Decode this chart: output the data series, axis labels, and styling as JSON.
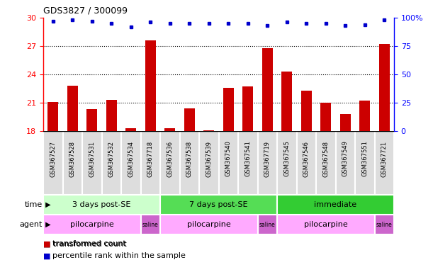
{
  "title": "GDS3827 / 300099",
  "samples": [
    "GSM367527",
    "GSM367528",
    "GSM367531",
    "GSM367532",
    "GSM367534",
    "GSM367718",
    "GSM367536",
    "GSM367538",
    "GSM367539",
    "GSM367540",
    "GSM367541",
    "GSM367719",
    "GSM367545",
    "GSM367546",
    "GSM367548",
    "GSM367549",
    "GSM367551",
    "GSM367721"
  ],
  "red_values": [
    21.1,
    22.8,
    20.3,
    21.3,
    18.3,
    27.6,
    18.3,
    20.4,
    18.1,
    22.6,
    22.7,
    26.8,
    24.3,
    22.3,
    21.0,
    19.8,
    21.2,
    27.2
  ],
  "blue_values": [
    97,
    98,
    97,
    95,
    92,
    96,
    95,
    95,
    95,
    95,
    95,
    93,
    96,
    95,
    95,
    93,
    94,
    98
  ],
  "ylim_left": [
    18,
    30
  ],
  "ylim_right": [
    0,
    100
  ],
  "yticks_left": [
    18,
    21,
    24,
    27,
    30
  ],
  "yticks_right": [
    0,
    25,
    50,
    75,
    100
  ],
  "bar_color": "#cc0000",
  "dot_color": "#0000cc",
  "time_groups": [
    {
      "label": "3 days post-SE",
      "start": 0,
      "end": 6,
      "color": "#ccffcc"
    },
    {
      "label": "7 days post-SE",
      "start": 6,
      "end": 12,
      "color": "#55dd55"
    },
    {
      "label": "immediate",
      "start": 12,
      "end": 18,
      "color": "#33cc33"
    }
  ],
  "agent_groups": [
    {
      "label": "pilocarpine",
      "start": 0,
      "end": 5,
      "color": "#ffaaff"
    },
    {
      "label": "saline",
      "start": 5,
      "end": 6,
      "color": "#cc66cc"
    },
    {
      "label": "pilocarpine",
      "start": 6,
      "end": 11,
      "color": "#ffaaff"
    },
    {
      "label": "saline",
      "start": 11,
      "end": 12,
      "color": "#cc66cc"
    },
    {
      "label": "pilocarpine",
      "start": 12,
      "end": 17,
      "color": "#ffaaff"
    },
    {
      "label": "saline",
      "start": 17,
      "end": 18,
      "color": "#cc66cc"
    }
  ],
  "legend_red": "transformed count",
  "legend_blue": "percentile rank within the sample",
  "plot_bg": "#ffffff",
  "tick_label_bg": "#dddddd"
}
